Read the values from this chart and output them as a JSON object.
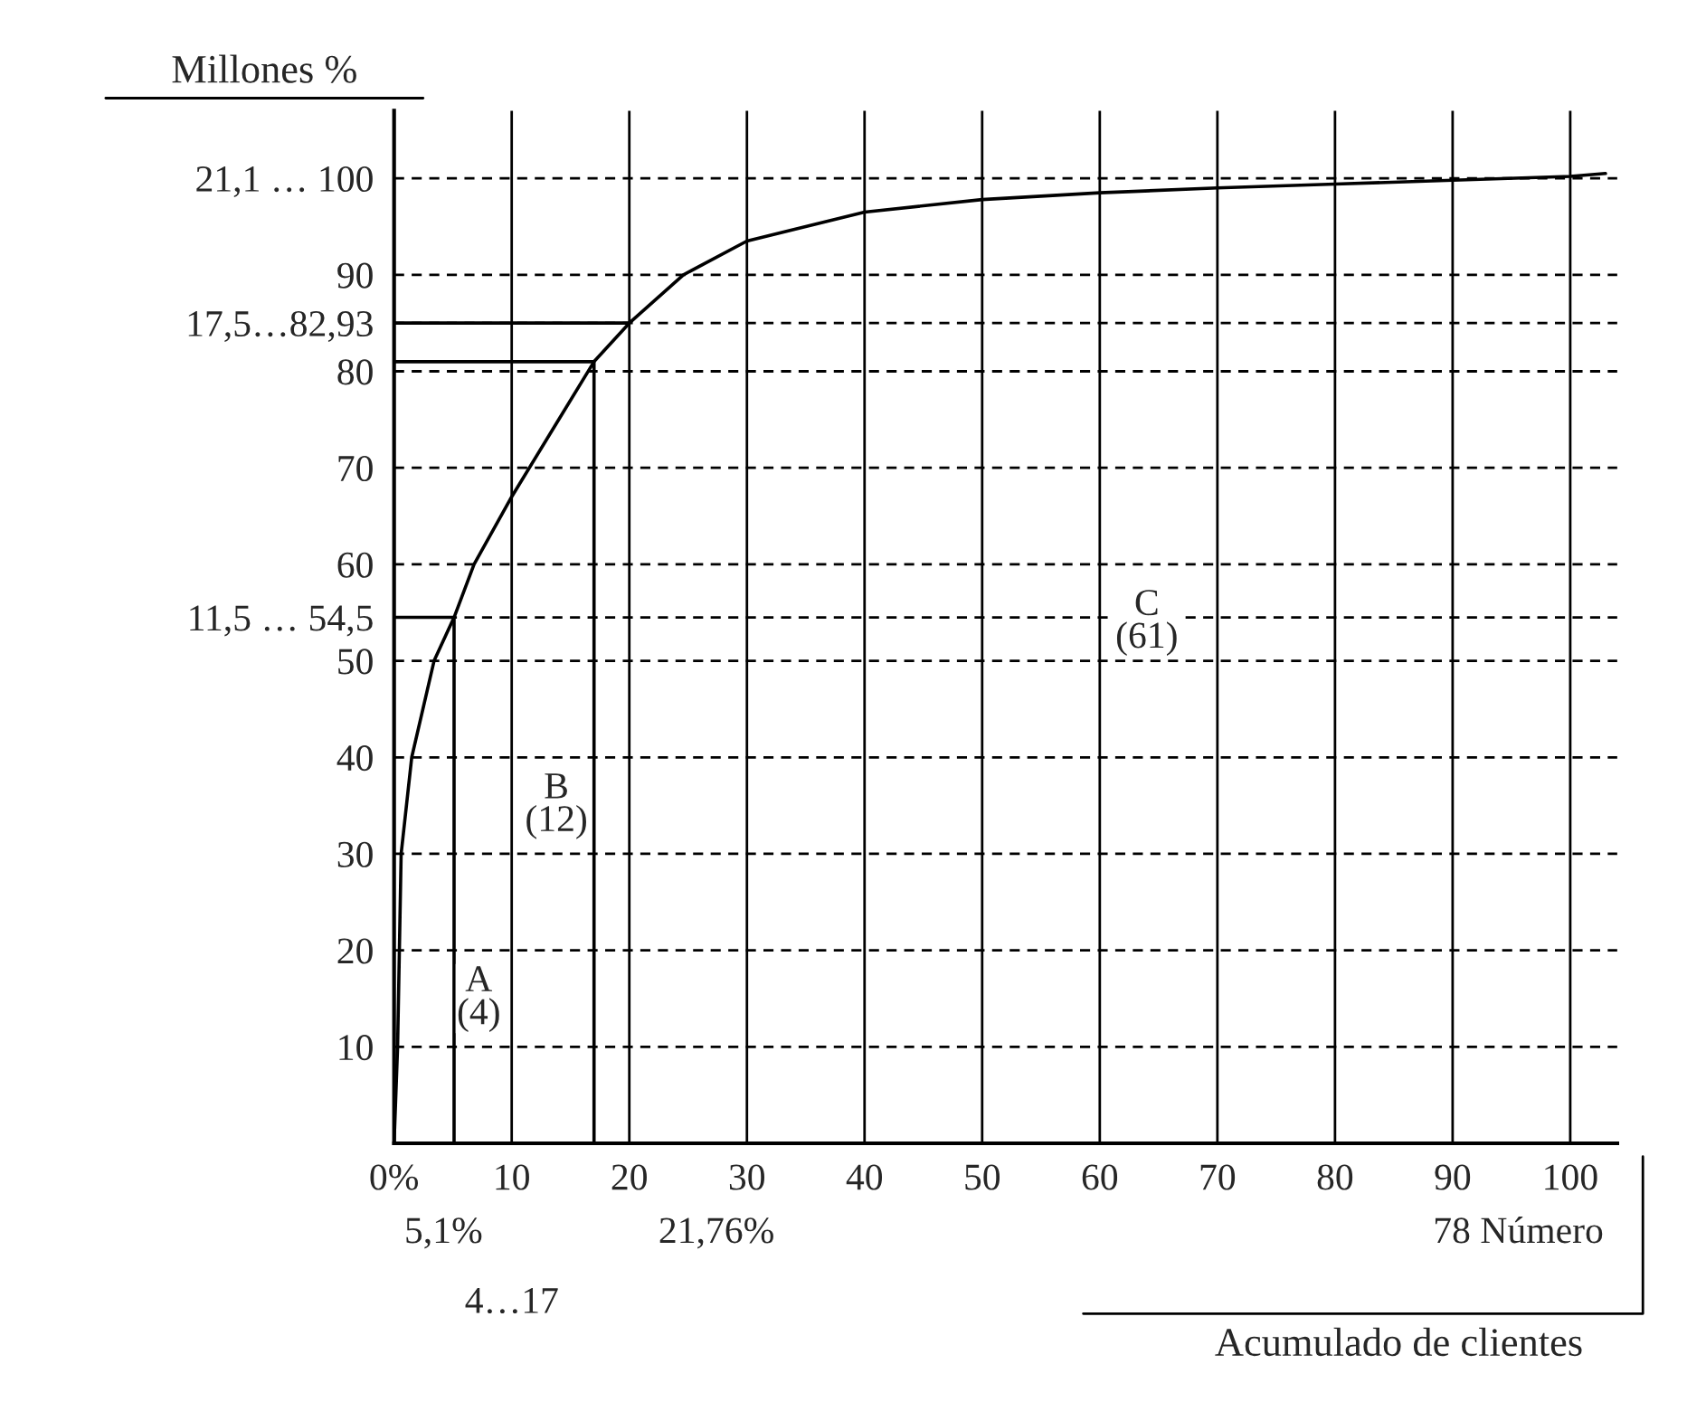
{
  "chart_data": {
    "type": "line",
    "ylabel": "Millones %",
    "xlabel": "Acumulado de clientes",
    "x": [
      0,
      0.3,
      0.6,
      1.5,
      3.4,
      5.1,
      6.8,
      10,
      13.5,
      17,
      20,
      24.6,
      30,
      40,
      50,
      60,
      70,
      80,
      90,
      100,
      103
    ],
    "series": [
      {
        "color": "#000000",
        "values": [
          0,
          10,
          30,
          40,
          50,
          54.5,
          60,
          67,
          74,
          81,
          85,
          90,
          93.5,
          96.5,
          97.8,
          98.5,
          99,
          99.4,
          99.8,
          100.2,
          100.5
        ]
      },
      {
        "color": "#000000",
        "x": [
          0,
          5.1,
          5.1
        ],
        "values": [
          54.5,
          54.5,
          0
        ]
      },
      {
        "color": "#000000",
        "x": [
          0,
          17,
          17
        ],
        "values": [
          81,
          81,
          0
        ]
      },
      {
        "color": "#000000",
        "x": [
          0,
          20
        ],
        "values": [
          85,
          85
        ]
      }
    ],
    "xlim": [
      0,
      104
    ],
    "ylim": [
      0,
      107
    ],
    "xticks": [
      {
        "value": 0,
        "label": "0%"
      },
      10,
      20,
      30,
      40,
      50,
      60,
      70,
      80,
      90,
      100
    ],
    "yticks": [
      10,
      20,
      30,
      40,
      50,
      {
        "value": 54.5,
        "label": "11,5 … 54,5"
      },
      60,
      70,
      80,
      {
        "value": 85,
        "label": "17,5…82,93"
      },
      90,
      {
        "value": 100,
        "label": "21,1 … 100"
      }
    ],
    "grid": true,
    "line_style": "solid",
    "annotations": [
      "A\n(4)",
      "B\n(12)",
      "C\n(61)",
      "5,1%",
      "21,76%",
      "4…17",
      "78 Número"
    ]
  }
}
